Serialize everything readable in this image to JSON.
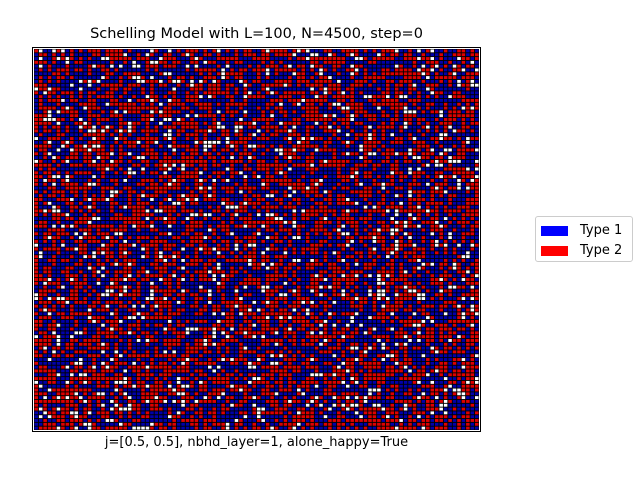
{
  "chart_data": {
    "type": "heatmap",
    "title": "Schelling Model with L=100, N=4500, step=0",
    "xlabel": "j=[0.5, 0.5], nbhd_layer=1, alone_happy=True",
    "ylabel": "",
    "grid_size": 100,
    "agents": 4500,
    "step": 0,
    "empty_fraction": 0.1,
    "cell_states": [
      "empty",
      "Type 1",
      "Type 2"
    ],
    "legend": {
      "placement": "right",
      "entries": [
        {
          "label": "Type 1",
          "color": "#0000ff"
        },
        {
          "label": "Type 2",
          "color": "#ff0000"
        }
      ]
    },
    "colors": {
      "type1_cell": "#0000aa",
      "type2_cell": "#dd0000",
      "empty_cell": "#ffffff",
      "cell_edge": "#000000"
    },
    "axes": {
      "ticks": false,
      "grid": false
    }
  }
}
